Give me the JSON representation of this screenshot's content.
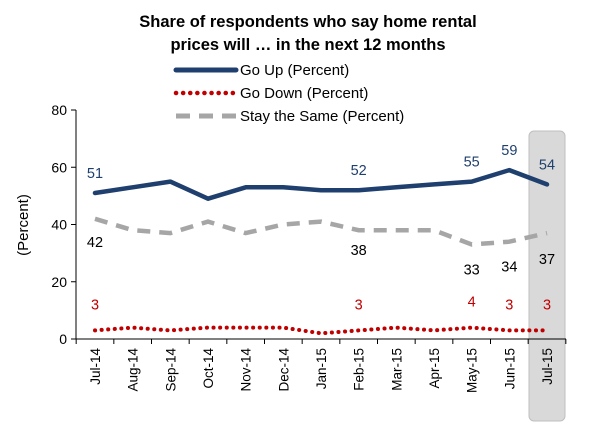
{
  "chart_data": {
    "type": "line",
    "title": "Share of respondents who say home rental prices will … in  the next 12 months",
    "title_lines": [
      "Share of respondents who say home rental",
      "prices will … in  the next 12 months"
    ],
    "xlabel": "",
    "ylabel": "(Percent)",
    "ylim": [
      0,
      80
    ],
    "yticks": [
      0,
      20,
      40,
      60,
      80
    ],
    "grid": false,
    "legend_position": "top",
    "categories": [
      "Jul-14",
      "Aug-14",
      "Sep-14",
      "Oct-14",
      "Nov-14",
      "Dec-14",
      "Jan-15",
      "Feb-15",
      "Mar-15",
      "Apr-15",
      "May-15",
      "Jun-15",
      "Jul-15"
    ],
    "highlighted_category": "Jul-15",
    "series": [
      {
        "name": "Go Up (Percent)",
        "color": "#1f3f6e",
        "style": "solid",
        "values": [
          51,
          53,
          55,
          49,
          53,
          53,
          52,
          52,
          53,
          54,
          55,
          59,
          54
        ],
        "labels": [
          {
            "index": 0,
            "text": "51"
          },
          {
            "index": 7,
            "text": "52"
          },
          {
            "index": 10,
            "text": "55"
          },
          {
            "index": 11,
            "text": "59"
          },
          {
            "index": 12,
            "text": "54"
          }
        ]
      },
      {
        "name": "Go Down (Percent)",
        "color": "#c00000",
        "style": "dotted",
        "values": [
          3,
          4,
          3,
          4,
          4,
          4,
          2,
          3,
          4,
          3,
          4,
          3,
          3
        ],
        "labels": [
          {
            "index": 0,
            "text": "3"
          },
          {
            "index": 7,
            "text": "3"
          },
          {
            "index": 10,
            "text": "4"
          },
          {
            "index": 11,
            "text": "3"
          },
          {
            "index": 12,
            "text": "3"
          }
        ]
      },
      {
        "name": "Stay the Same (Percent)",
        "color": "#a6a6a6",
        "style": "dashed",
        "values": [
          42,
          38,
          37,
          41,
          37,
          40,
          41,
          38,
          38,
          38,
          33,
          34,
          37
        ],
        "labels": [
          {
            "index": 0,
            "text": "42"
          },
          {
            "index": 7,
            "text": "38"
          },
          {
            "index": 10,
            "text": "33"
          },
          {
            "index": 11,
            "text": "34"
          },
          {
            "index": 12,
            "text": "37"
          }
        ]
      }
    ]
  }
}
